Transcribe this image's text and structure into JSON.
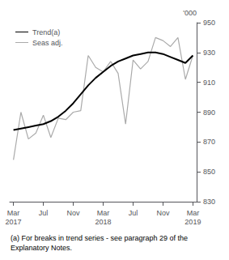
{
  "chart_data": {
    "type": "line",
    "categories": [
      "Mar\n2017",
      null,
      null,
      null,
      "Jul",
      null,
      null,
      null,
      "Nov",
      null,
      null,
      null,
      "Mar\n2018",
      null,
      null,
      null,
      "Jul",
      null,
      null,
      null,
      "Nov",
      null,
      null,
      null,
      "Mar\n2019"
    ],
    "series": [
      {
        "name": "Trend(a)",
        "color": "#000000",
        "values": [
          878,
          879,
          880,
          881,
          882,
          884,
          887,
          891,
          896,
          902,
          908,
          913,
          917,
          921,
          924,
          926,
          928,
          929,
          930,
          930,
          929,
          927,
          925,
          923,
          928
        ]
      },
      {
        "name": "Seas adj.",
        "color": "#aaaaaa",
        "values": [
          858,
          890,
          872,
          876,
          888,
          873,
          886,
          885,
          890,
          891,
          928,
          920,
          917,
          924,
          916,
          882,
          925,
          919,
          924,
          940,
          938,
          934,
          940,
          912,
          928
        ]
      }
    ],
    "y_label": "'000",
    "ylim": [
      830,
      950
    ],
    "yticks": [
      830,
      850,
      870,
      890,
      910,
      930,
      950
    ],
    "annotations": [
      "(a) For breaks in trend series - see paragraph 29 of the Explanatory Notes."
    ],
    "legend": "upper left",
    "grid": false
  }
}
